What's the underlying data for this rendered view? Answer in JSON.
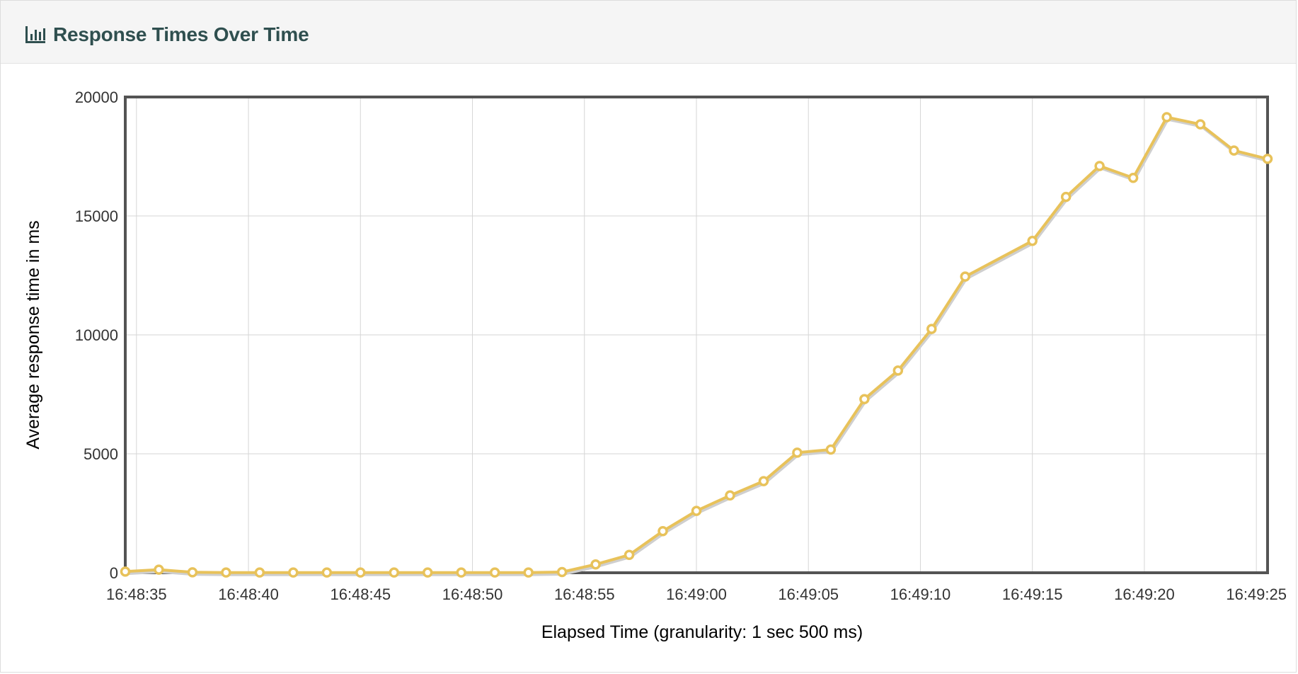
{
  "panel": {
    "title": "Response Times Over Time",
    "icon": "bar-chart-icon"
  },
  "colors": {
    "series": "#e8c25a",
    "series_shadow": "#cfcfcf",
    "grid": "#d6d6d6",
    "frame": "#545454",
    "title": "#2f4f4f"
  },
  "chart_data": {
    "type": "line",
    "title": "Response Times Over Time",
    "xlabel": "Elapsed Time (granularity: 1 sec 500 ms)",
    "ylabel": "Average response time in ms",
    "ylim": [
      0,
      20000
    ],
    "xlim": [
      "16:48:34.50",
      "16:49:25.50"
    ],
    "y_ticks": [
      "0",
      "5000",
      "10000",
      "15000",
      "20000"
    ],
    "x_ticks": [
      "16:48:35",
      "16:48:40",
      "16:48:45",
      "16:48:50",
      "16:48:55",
      "16:49:00",
      "16:49:05",
      "16:49:10",
      "16:49:15",
      "16:49:20",
      "16:49:25"
    ],
    "grid": true,
    "legend": "none",
    "series": [
      {
        "x": [
          "16:48:34.50",
          "16:48:36.00",
          "16:48:37.50",
          "16:48:39.00",
          "16:48:40.50",
          "16:48:42.00",
          "16:48:43.50",
          "16:48:45.00",
          "16:48:46.50",
          "16:48:48.00",
          "16:48:49.50",
          "16:48:51.00",
          "16:48:52.50",
          "16:48:54.00",
          "16:48:55.50",
          "16:48:57.00",
          "16:48:58.50",
          "16:49:00.00",
          "16:49:01.50",
          "16:49:03.00",
          "16:49:04.50",
          "16:49:06.00",
          "16:49:07.50",
          "16:49:09.00",
          "16:49:10.50",
          "16:49:12.00",
          "16:49:15.00",
          "16:49:16.50",
          "16:49:18.00",
          "16:49:19.50",
          "16:49:21.00",
          "16:49:22.50",
          "16:49:24.00",
          "16:49:25.50"
        ],
        "values": [
          50,
          130,
          20,
          10,
          10,
          10,
          10,
          10,
          10,
          10,
          10,
          10,
          10,
          30,
          350,
          750,
          1750,
          2600,
          3250,
          3850,
          5050,
          5180,
          7300,
          8500,
          10250,
          12450,
          13950,
          15800,
          17100,
          16600,
          19150,
          18850,
          17750,
          17400
        ]
      }
    ]
  }
}
